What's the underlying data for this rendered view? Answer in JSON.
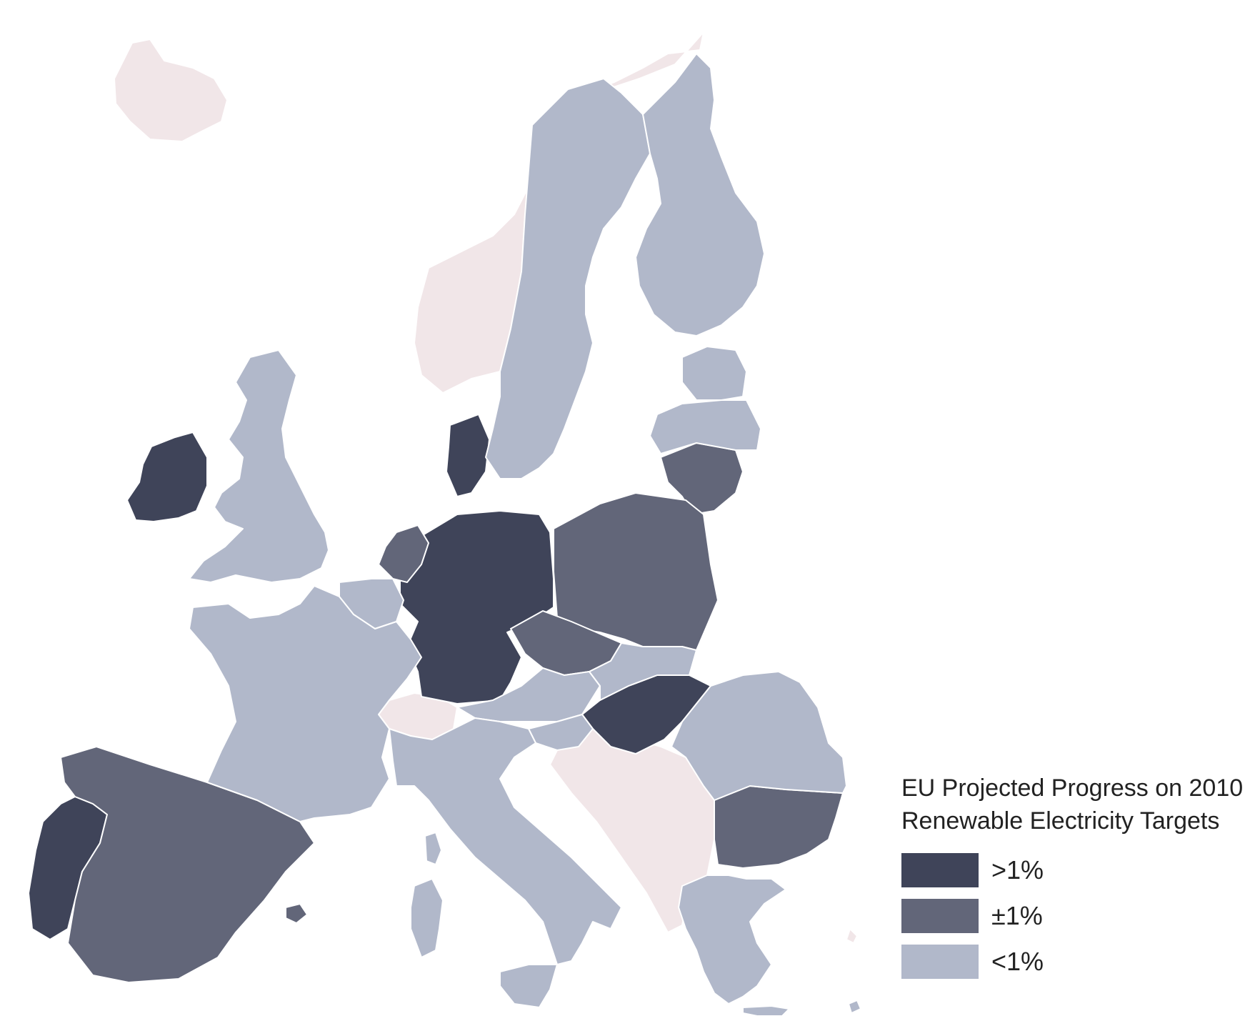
{
  "legend": {
    "title": "EU Projected Progress on 2010 Renewable Electricity Targets",
    "items": [
      {
        "key": "gt1",
        "label": ">1%",
        "color": "#3f4459"
      },
      {
        "key": "pm1",
        "label": "±1%",
        "color": "#626679"
      },
      {
        "key": "lt1",
        "label": "<1%",
        "color": "#b1b8ca"
      }
    ],
    "no_data_color": "#f1e6e8"
  }
}
